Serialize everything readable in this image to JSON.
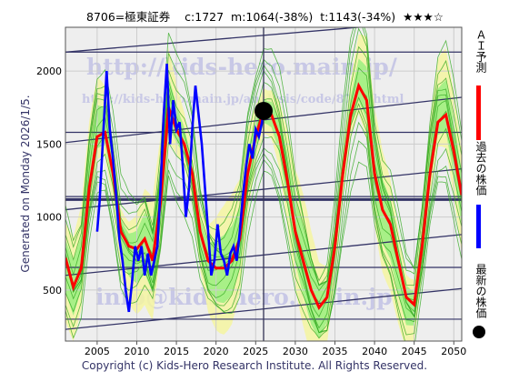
{
  "header": {
    "text": "8706=極東証券    c:1727  m:1064(-38%)  t:1143(-34%)  ★★★☆"
  },
  "ylabel_left": "Generated on Monday 2026/1/5.",
  "copyright": "Copyright (c) Kids-Hero Research Institute. All Rights Reserved.",
  "watermarks": {
    "url": "http://kids-hero.main.jp/",
    "url2": "http://kids-hero.main.jp/analysis/code/8706.html",
    "email": "info@kids-hero.main.jp"
  },
  "legend": {
    "ai": "ＡＩ予測",
    "past": "過去の株価",
    "latest": "最新の株価"
  },
  "colors": {
    "ai_line": "#ff0000",
    "past_line": "#0000ff",
    "latest_dot": "#000000",
    "band_yellow": "#f5f5a0",
    "band_green": "#9aee80",
    "green_lines": "#33aa22",
    "trend_lines": "#333366",
    "plot_bg": "#eeeeee"
  },
  "chart_data": {
    "type": "line",
    "xlim": [
      2001,
      2051
    ],
    "ylim": [
      150,
      2300
    ],
    "x_ticks": [
      2005,
      2010,
      2015,
      2020,
      2025,
      2030,
      2035,
      2040,
      2045,
      2050
    ],
    "y_ticks": [
      500,
      1000,
      1500,
      2000
    ],
    "grid": true,
    "current_x": 2026,
    "current_price": 1727,
    "horizontal_levels": [
      1140,
      1583
    ],
    "series": [
      {
        "name": "過去の株価",
        "points": [
          [
            2005.0,
            900
          ],
          [
            2005.3,
            1100
          ],
          [
            2005.7,
            1500
          ],
          [
            2006.0,
            1800
          ],
          [
            2006.2,
            2000
          ],
          [
            2006.6,
            1600
          ],
          [
            2007.0,
            1400
          ],
          [
            2007.4,
            1150
          ],
          [
            2007.8,
            850
          ],
          [
            2008.2,
            700
          ],
          [
            2008.6,
            500
          ],
          [
            2009.0,
            350
          ],
          [
            2009.4,
            550
          ],
          [
            2009.8,
            800
          ],
          [
            2010.2,
            700
          ],
          [
            2010.6,
            800
          ],
          [
            2011.0,
            600
          ],
          [
            2011.4,
            750
          ],
          [
            2011.8,
            600
          ],
          [
            2012.2,
            700
          ],
          [
            2012.6,
            800
          ],
          [
            2013.0,
            1200
          ],
          [
            2013.4,
            1700
          ],
          [
            2013.8,
            2050
          ],
          [
            2014.2,
            1500
          ],
          [
            2014.6,
            1800
          ],
          [
            2015.0,
            1600
          ],
          [
            2015.4,
            1650
          ],
          [
            2015.8,
            1350
          ],
          [
            2016.2,
            1000
          ],
          [
            2016.6,
            1200
          ],
          [
            2017.0,
            1600
          ],
          [
            2017.4,
            1900
          ],
          [
            2017.8,
            1700
          ],
          [
            2018.2,
            1500
          ],
          [
            2018.6,
            1200
          ],
          [
            2019.0,
            900
          ],
          [
            2019.4,
            600
          ],
          [
            2019.8,
            700
          ],
          [
            2020.2,
            950
          ],
          [
            2020.6,
            750
          ],
          [
            2021.0,
            700
          ],
          [
            2021.4,
            600
          ],
          [
            2021.8,
            750
          ],
          [
            2022.2,
            800
          ],
          [
            2022.6,
            700
          ],
          [
            2023.0,
            900
          ],
          [
            2023.4,
            1150
          ],
          [
            2023.8,
            1350
          ],
          [
            2024.2,
            1500
          ],
          [
            2024.6,
            1400
          ],
          [
            2025.0,
            1600
          ],
          [
            2025.4,
            1550
          ],
          [
            2025.8,
            1650
          ],
          [
            2026.0,
            1727
          ]
        ]
      },
      {
        "name": "ＡＩ予測",
        "points": [
          [
            2001.0,
            720
          ],
          [
            2002.0,
            520
          ],
          [
            2003.0,
            650
          ],
          [
            2004.0,
            1200
          ],
          [
            2005.0,
            1550
          ],
          [
            2006.0,
            1580
          ],
          [
            2007.0,
            1300
          ],
          [
            2008.0,
            900
          ],
          [
            2009.0,
            800
          ],
          [
            2010.0,
            780
          ],
          [
            2011.0,
            850
          ],
          [
            2012.0,
            700
          ],
          [
            2013.0,
            1100
          ],
          [
            2014.0,
            1750
          ],
          [
            2015.0,
            1600
          ],
          [
            2016.0,
            1500
          ],
          [
            2017.0,
            1300
          ],
          [
            2018.0,
            900
          ],
          [
            2019.0,
            700
          ],
          [
            2020.0,
            650
          ],
          [
            2021.0,
            650
          ],
          [
            2022.0,
            700
          ],
          [
            2023.0,
            850
          ],
          [
            2024.0,
            1300
          ],
          [
            2025.0,
            1550
          ],
          [
            2026.0,
            1727
          ],
          [
            2027.0,
            1700
          ],
          [
            2028.0,
            1550
          ],
          [
            2029.0,
            1250
          ],
          [
            2030.0,
            900
          ],
          [
            2031.0,
            700
          ],
          [
            2032.0,
            500
          ],
          [
            2033.0,
            380
          ],
          [
            2034.0,
            450
          ],
          [
            2035.0,
            800
          ],
          [
            2036.0,
            1300
          ],
          [
            2037.0,
            1700
          ],
          [
            2038.0,
            1900
          ],
          [
            2039.0,
            1800
          ],
          [
            2040.0,
            1300
          ],
          [
            2041.0,
            1050
          ],
          [
            2042.0,
            950
          ],
          [
            2043.0,
            700
          ],
          [
            2044.0,
            450
          ],
          [
            2045.0,
            400
          ],
          [
            2046.0,
            800
          ],
          [
            2047.0,
            1300
          ],
          [
            2048.0,
            1650
          ],
          [
            2049.0,
            1700
          ],
          [
            2050.0,
            1450
          ],
          [
            2051.0,
            1150
          ]
        ]
      }
    ]
  }
}
